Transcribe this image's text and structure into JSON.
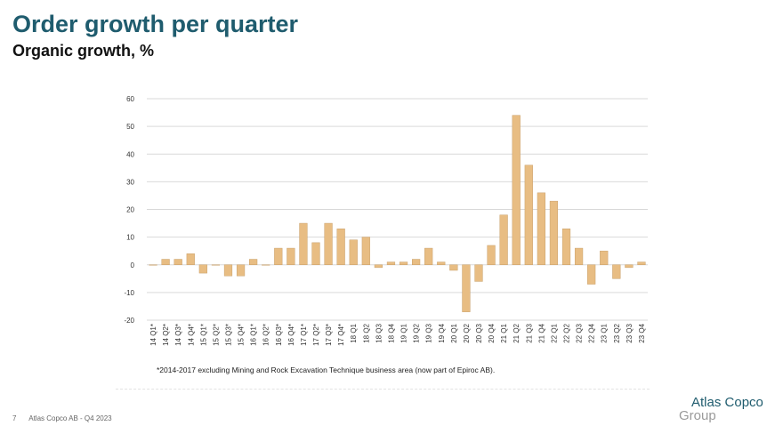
{
  "header": {
    "title": "Order growth per quarter",
    "subtitle": "Organic growth, %"
  },
  "chart_data": {
    "type": "bar",
    "categories": [
      "14 Q1*",
      "14 Q2*",
      "14 Q3*",
      "14 Q4*",
      "15 Q1*",
      "15 Q2*",
      "15 Q3*",
      "15 Q4*",
      "16 Q1*",
      "16 Q2*",
      "16 Q3*",
      "16 Q4*",
      "17 Q1*",
      "17 Q2*",
      "17 Q3*",
      "17 Q4*",
      "18 Q1",
      "18 Q2",
      "18 Q3",
      "18 Q4",
      "19 Q1",
      "19 Q2",
      "19 Q3",
      "19 Q4",
      "20 Q1",
      "20 Q2",
      "20 Q3",
      "20 Q4",
      "21 Q1",
      "21 Q2",
      "21 Q3",
      "21 Q4",
      "22 Q1",
      "22 Q2",
      "22 Q3",
      "22 Q4",
      "23 Q1",
      "23 Q2",
      "23 Q3",
      "23 Q4"
    ],
    "values": [
      0,
      2,
      2,
      4,
      -3,
      0,
      -4,
      -4,
      2,
      0,
      6,
      6,
      15,
      8,
      15,
      13,
      9,
      10,
      -1,
      1,
      1,
      2,
      6,
      1,
      -2,
      -17,
      -6,
      7,
      18,
      54,
      36,
      26,
      23,
      13,
      6,
      -7,
      5,
      -5,
      -1,
      1
    ],
    "yticks": [
      "60",
      "50",
      "40",
      "30",
      "20",
      "10",
      "0",
      "-10",
      "-20"
    ],
    "ylim": [
      -20,
      60
    ],
    "grid": true,
    "bar_color": "#e8bd83",
    "bar_edge_color": "#c9a06a"
  },
  "footnote": "*2014-2017 excluding Mining and Rock Excavation Technique business area (now part of Epiroc AB).",
  "footer": {
    "page_number": "7",
    "text": "Atlas Copco AB - Q4 2023"
  },
  "logo": {
    "line1": "Atlas Copco",
    "line2": "Group"
  },
  "colors": {
    "title": "#1f5c6e",
    "grid": "#d9d9d9"
  }
}
